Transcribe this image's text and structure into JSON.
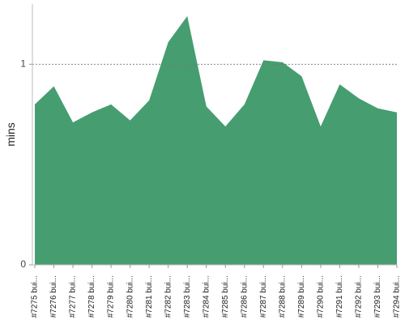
{
  "chart_data": {
    "type": "area",
    "y_label": "mins",
    "categories": [
      "#7275 bui...",
      "#7276 bui...",
      "#7277 bui...",
      "#7278 bui...",
      "#7279 bui...",
      "#7280 bui...",
      "#7281 bui...",
      "#7282 bui...",
      "#7283 bui...",
      "#7284 bui...",
      "#7285 bui...",
      "#7286 bui...",
      "#7287 bui...",
      "#7288 bui...",
      "#7289 bui...",
      "#7290 bui...",
      "#7291 bui...",
      "#7292 bui...",
      "#7293 bui...",
      "#7294 bui..."
    ],
    "values": [
      0.8,
      0.89,
      0.71,
      0.76,
      0.8,
      0.72,
      0.82,
      1.11,
      1.24,
      0.79,
      0.69,
      0.8,
      1.02,
      1.01,
      0.94,
      0.69,
      0.9,
      0.83,
      0.78,
      0.76
    ],
    "color": "#469e70",
    "ylim": [
      0,
      1.3
    ],
    "yticks": [
      0,
      1
    ],
    "grid": true
  }
}
